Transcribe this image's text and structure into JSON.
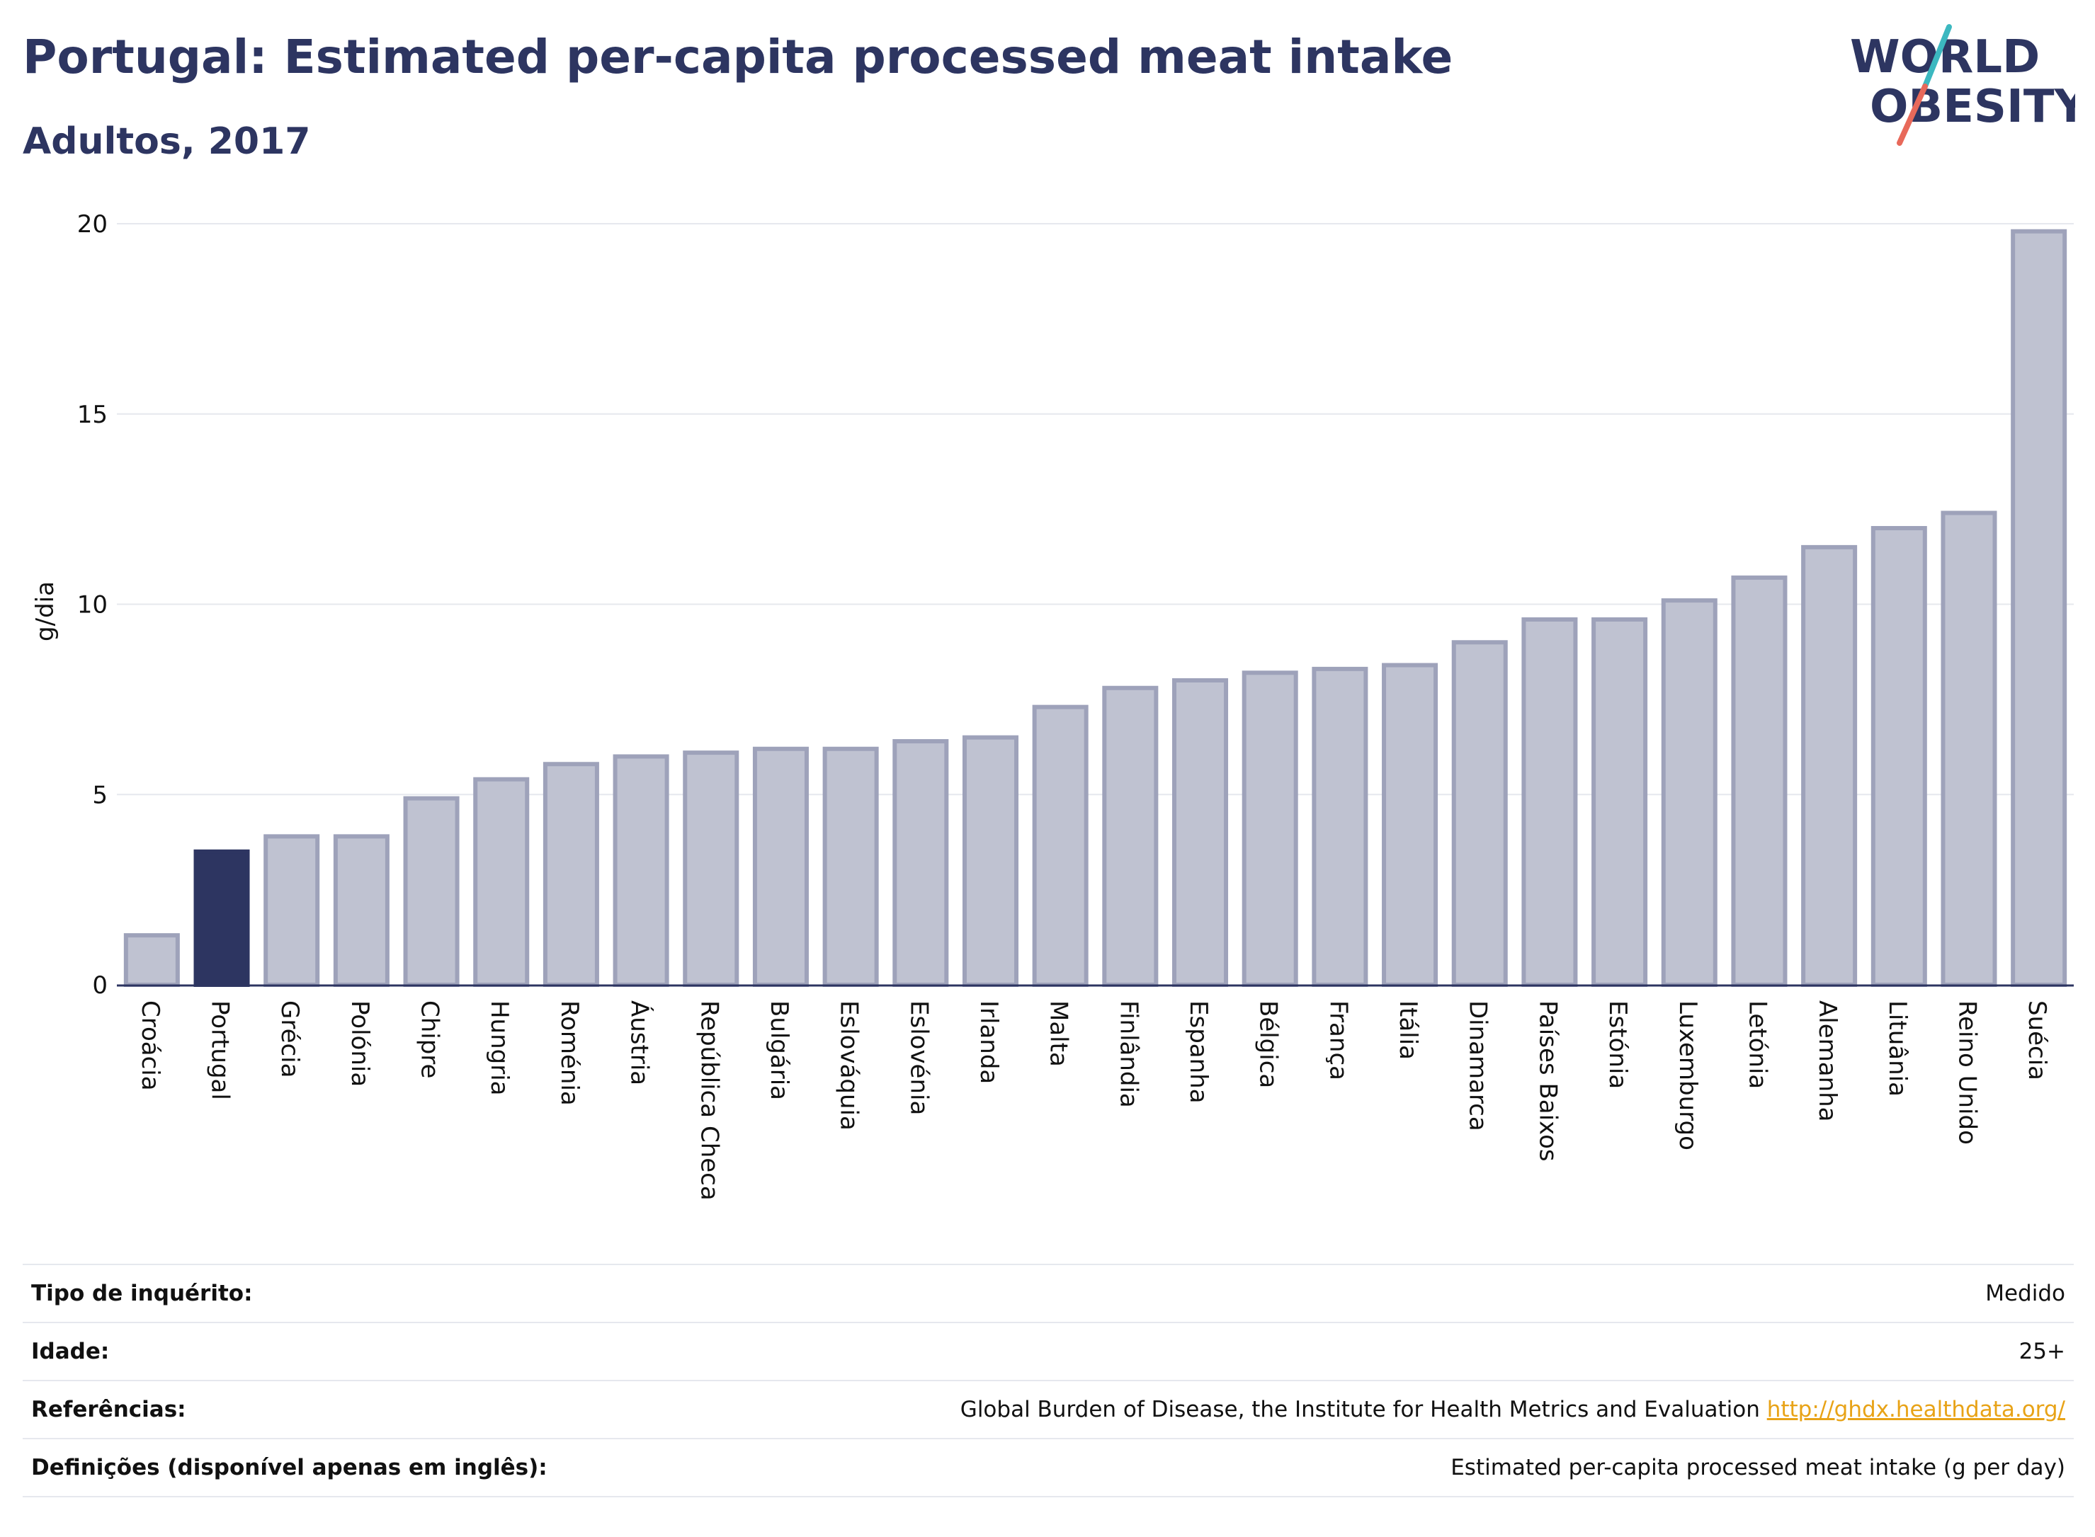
{
  "header": {
    "title": "Portugal: Estimated per-capita processed meat intake",
    "subtitle": "Adultos, 2017"
  },
  "logo": {
    "line1": "WORLD",
    "line2": "OBESITY",
    "colors": {
      "text": "#2d3561",
      "slash_teal": "#3cb8c0",
      "slash_coral": "#e8695a"
    }
  },
  "colors": {
    "highlight_bar": "#2d3561",
    "bar_fill": "#bfc2d1",
    "bar_stroke": "#9ea2ba",
    "grid": "#e6e8ee",
    "axis": "#2d3561",
    "link": "#e8a317"
  },
  "chart_data": {
    "type": "bar",
    "title": "Portugal: Estimated per-capita processed meat intake",
    "subtitle": "Adultos, 2017",
    "xlabel": "",
    "ylabel": "g/dia",
    "ylim": [
      0,
      20
    ],
    "yticks": [
      0,
      5,
      10,
      15,
      20
    ],
    "grid": true,
    "highlight": "Portugal",
    "categories": [
      "Croácia",
      "Portugal",
      "Grécia",
      "Polónia",
      "Chipre",
      "Hungria",
      "Roménia",
      "Áustria",
      "República Checa",
      "Bulgária",
      "Eslováquia",
      "Eslovénia",
      "Irlanda",
      "Malta",
      "Finlândia",
      "Espanha",
      "Bélgica",
      "França",
      "Itália",
      "Dinamarca",
      "Países Baixos",
      "Estónia",
      "Luxemburgo",
      "Letónia",
      "Alemanha",
      "Lituânia",
      "Reino Unido",
      "Suécia"
    ],
    "values": [
      1.3,
      3.5,
      3.9,
      3.9,
      4.9,
      5.4,
      5.8,
      6.0,
      6.1,
      6.2,
      6.2,
      6.4,
      6.5,
      7.3,
      7.8,
      8.0,
      8.2,
      8.3,
      8.4,
      9.0,
      9.6,
      9.6,
      10.1,
      10.7,
      11.5,
      12.0,
      12.4,
      19.8
    ]
  },
  "info": {
    "rows": [
      {
        "label": "Tipo de inquérito:",
        "value": "Medido"
      },
      {
        "label": "Idade:",
        "value": "25+"
      },
      {
        "label": "Referências:",
        "value": "Global Burden of Disease, the Institute for Health Metrics and Evaluation",
        "link": "http://ghdx.healthdata.org/"
      },
      {
        "label": "Definições (disponível apenas em inglês):",
        "value": "Estimated per-capita processed meat intake (g per day)"
      }
    ]
  }
}
